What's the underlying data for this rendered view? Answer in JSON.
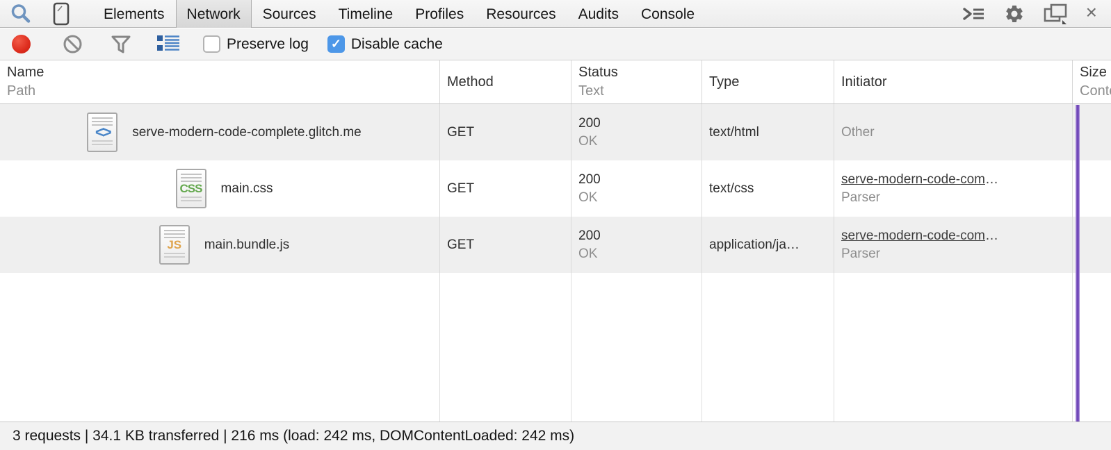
{
  "tabbar": {
    "tabs": [
      {
        "id": "elements",
        "label": "Elements",
        "active": false
      },
      {
        "id": "network",
        "label": "Network",
        "active": true
      },
      {
        "id": "sources",
        "label": "Sources",
        "active": false
      },
      {
        "id": "timeline",
        "label": "Timeline",
        "active": false
      },
      {
        "id": "profiles",
        "label": "Profiles",
        "active": false
      },
      {
        "id": "resources",
        "label": "Resources",
        "active": false
      },
      {
        "id": "audits",
        "label": "Audits",
        "active": false
      },
      {
        "id": "console",
        "label": "Console",
        "active": false
      }
    ],
    "left_icons": [
      "search-icon",
      "device-mode-icon"
    ],
    "right_icons": [
      "console-drawer-icon",
      "settings-gear-icon",
      "dock-side-icon",
      "close-icon"
    ],
    "close_glyph": "×"
  },
  "toolbar": {
    "record_icon": "record-dot-icon",
    "clear_icon": "block-circle-icon",
    "filter_icon": "funnel-icon",
    "view_icon": "detailed-list-icon",
    "preserve_log": {
      "label": "Preserve log",
      "checked": false
    },
    "disable_cache": {
      "label": "Disable cache",
      "checked": true
    },
    "check_glyph": "✓"
  },
  "table": {
    "columns": [
      {
        "title": "Name",
        "subtitle": "Path"
      },
      {
        "title": "Method",
        "subtitle": ""
      },
      {
        "title": "Status",
        "subtitle": "Text"
      },
      {
        "title": "Type",
        "subtitle": ""
      },
      {
        "title": "Initiator",
        "subtitle": ""
      },
      {
        "title": "Size",
        "subtitle": "Content"
      }
    ]
  },
  "icons": {
    "html_glyph": "<>",
    "css_glyph": "CSS",
    "js_glyph": "JS"
  },
  "requests": [
    {
      "name": "serve-modern-code-complete.glitch.me",
      "icon": "html",
      "method": "GET",
      "status": "200",
      "status_text": "OK",
      "type": "text/html",
      "initiator_text": "Other",
      "initiator_ellipsis": "",
      "initiator_sub": "",
      "initiator_is_link": false,
      "shaded": true
    },
    {
      "name": "main.css",
      "icon": "css",
      "method": "GET",
      "status": "200",
      "status_text": "OK",
      "type": "text/css",
      "initiator_text": "serve-modern-code-com",
      "initiator_ellipsis": "…",
      "initiator_sub": "Parser",
      "initiator_is_link": true,
      "shaded": false
    },
    {
      "name": "main.bundle.js",
      "icon": "js",
      "method": "GET",
      "status": "200",
      "status_text": "OK",
      "type": "application/ja…",
      "initiator_text": "serve-modern-code-com",
      "initiator_ellipsis": "…",
      "initiator_sub": "Parser",
      "initiator_is_link": true,
      "shaded": true
    }
  ],
  "status_bar": {
    "summary": "3 requests | 34.1 KB transferred | 216 ms (load: 242 ms, DOMContentLoaded: 242 ms)"
  },
  "colors": {
    "accent_blue": "#4d97e8",
    "record_red": "#dd2c1d",
    "event_line_purple": "#7048b8",
    "secondary_gray": "#8d8d8d"
  }
}
